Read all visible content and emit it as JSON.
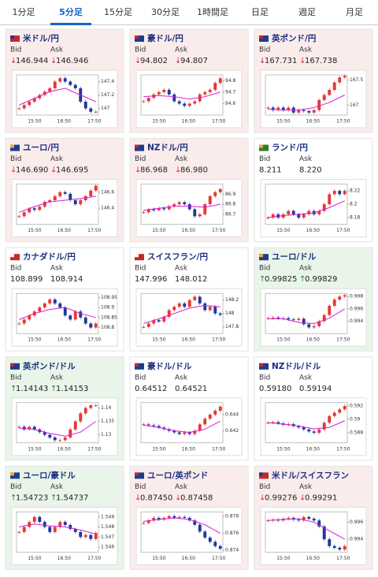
{
  "tabs": [
    "1分足",
    "5分足",
    "15分足",
    "30分足",
    "1時間足",
    "日足",
    "週足",
    "月足"
  ],
  "active_tab": 1,
  "labels": {
    "bid": "Bid",
    "ask": "Ask"
  },
  "xticks": [
    "15:50",
    "16:50",
    "17:50"
  ],
  "tiles": [
    {
      "pair": "米ドル/円",
      "trend": "↓",
      "bid": "146.944",
      "ask": "146.946",
      "chart": {
        "ylim": [
          146.9,
          147.5
        ],
        "yticks": [
          147,
          147.2,
          147.4
        ],
        "close": [
          147.0,
          147.05,
          147.1,
          147.15,
          147.2,
          147.25,
          147.3,
          147.4,
          147.45,
          147.4,
          147.35,
          147.3,
          147.1,
          147.0,
          146.95,
          146.95
        ],
        "ma": [
          147.05,
          147.15,
          147.25,
          147.3,
          147.2,
          147.1
        ]
      }
    },
    {
      "pair": "豪ドル/円",
      "trend": "↓",
      "bid": "94.802",
      "ask": "94.807",
      "chart": {
        "ylim": [
          94.5,
          94.85
        ],
        "yticks": [
          94.6,
          94.7,
          94.8
        ],
        "close": [
          94.62,
          94.65,
          94.68,
          94.7,
          94.72,
          94.68,
          94.62,
          94.6,
          94.58,
          94.6,
          94.62,
          94.68,
          94.7,
          94.72,
          94.78,
          94.82
        ],
        "ma": [
          94.66,
          94.67,
          94.66,
          94.64,
          94.66,
          94.7
        ]
      }
    },
    {
      "pair": "英ポンド/円",
      "trend": "↓",
      "bid": "167.731",
      "ask": "167.738",
      "chart": {
        "ylim": [
          166.8,
          167.6
        ],
        "yticks": [
          167,
          167.5
        ],
        "close": [
          166.95,
          166.9,
          166.95,
          166.9,
          166.95,
          166.85,
          166.9,
          166.88,
          166.85,
          166.9,
          167.1,
          167.2,
          167.3,
          167.45,
          167.55,
          167.58
        ],
        "ma": [
          166.92,
          166.9,
          166.9,
          166.95,
          167.05,
          167.2
        ]
      }
    },
    {
      "pair": "ユーロ/円",
      "trend": "↓",
      "bid": "146.690",
      "ask": "146.695",
      "chart": {
        "ylim": [
          146.2,
          146.7
        ],
        "yticks": [
          146.4,
          146.6
        ],
        "close": [
          146.3,
          146.35,
          146.4,
          146.38,
          146.42,
          146.48,
          146.5,
          146.55,
          146.6,
          146.58,
          146.5,
          146.45,
          146.5,
          146.55,
          146.62,
          146.68
        ],
        "ma": [
          146.35,
          146.42,
          146.48,
          146.5,
          146.52,
          146.55
        ]
      }
    },
    {
      "pair": "NZドル/円",
      "trend": "↓",
      "bid": "86.968",
      "ask": "86.980",
      "chart": {
        "ylim": [
          86.6,
          87.0
        ],
        "yticks": [
          86.7,
          86.8,
          86.9
        ],
        "close": [
          86.72,
          86.75,
          86.74,
          86.76,
          86.75,
          86.78,
          86.8,
          86.82,
          86.8,
          86.75,
          86.68,
          86.7,
          86.8,
          86.88,
          86.92,
          86.95
        ],
        "ma": [
          86.74,
          86.76,
          86.78,
          86.78,
          86.77,
          86.8
        ]
      }
    },
    {
      "pair": "ランド/円",
      "trend": null,
      "bid": "8.211",
      "ask": "8.220",
      "chart": {
        "ylim": [
          8.17,
          8.23
        ],
        "yticks": [
          8.18,
          8.2,
          8.22
        ],
        "close": [
          8.18,
          8.185,
          8.18,
          8.185,
          8.19,
          8.185,
          8.18,
          8.185,
          8.19,
          8.185,
          8.19,
          8.2,
          8.215,
          8.22,
          8.215,
          8.22
        ],
        "ma": [
          8.18,
          8.183,
          8.185,
          8.187,
          8.195,
          8.205
        ]
      }
    },
    {
      "pair": "カナダドル/円",
      "trend": null,
      "bid": "108.899",
      "ask": "108.914",
      "chart": {
        "ylim": [
          108.77,
          108.97
        ],
        "yticks": [
          108.8,
          108.85,
          108.9,
          108.95
        ],
        "close": [
          108.82,
          108.84,
          108.86,
          108.88,
          108.9,
          108.92,
          108.94,
          108.92,
          108.9,
          108.86,
          108.84,
          108.88,
          108.85,
          108.82,
          108.8,
          108.82
        ],
        "ma": [
          108.84,
          108.87,
          108.89,
          108.9,
          108.87,
          108.85
        ]
      }
    },
    {
      "pair": "スイスフラン/円",
      "trend": null,
      "bid": "147.996",
      "ask": "148.012",
      "chart": {
        "ylim": [
          147.7,
          148.3
        ],
        "yticks": [
          147.8,
          148,
          148.2
        ],
        "close": [
          147.8,
          147.85,
          147.9,
          147.88,
          147.95,
          148.05,
          148.1,
          148.15,
          148.1,
          148.2,
          148.25,
          148.15,
          148.05,
          148.1,
          148.0,
          147.98
        ],
        "ma": [
          147.85,
          147.92,
          148.0,
          148.08,
          148.12,
          148.1
        ]
      }
    },
    {
      "pair": "ユーロ/ドル",
      "trend": "↑",
      "bid": "0.99825",
      "ask": "0.99829",
      "chart": {
        "ylim": [
          0.992,
          0.9985
        ],
        "yticks": [
          0.994,
          0.996,
          0.998
        ],
        "close": [
          0.9945,
          0.9946,
          0.9944,
          0.9945,
          0.9943,
          0.9942,
          0.9944,
          0.9935,
          0.993,
          0.9932,
          0.994,
          0.995,
          0.9965,
          0.9975,
          0.998,
          0.9982
        ],
        "ma": [
          0.9944,
          0.9944,
          0.9938,
          0.9936,
          0.9945,
          0.996
        ]
      }
    },
    {
      "pair": "英ポンド/ドル",
      "trend": "↑",
      "bid": "1.14143",
      "ask": "1.14153",
      "chart": {
        "ylim": [
          1.127,
          1.142
        ],
        "yticks": [
          1.13,
          1.135,
          1.14
        ],
        "close": [
          1.133,
          1.132,
          1.133,
          1.132,
          1.131,
          1.13,
          1.129,
          1.128,
          1.128,
          1.129,
          1.132,
          1.135,
          1.138,
          1.14,
          1.141,
          1.141
        ],
        "ma": [
          1.1325,
          1.132,
          1.1305,
          1.1295,
          1.131,
          1.135
        ]
      }
    },
    {
      "pair": "豪ドル/ドル",
      "trend": null,
      "bid": "0.64512",
      "ask": "0.64521",
      "chart": {
        "ylim": [
          0.6405,
          0.6455
        ],
        "yticks": [
          0.642,
          0.644
        ],
        "close": [
          0.6428,
          0.6427,
          0.6426,
          0.6424,
          0.6422,
          0.642,
          0.6418,
          0.6416,
          0.6418,
          0.6416,
          0.642,
          0.6428,
          0.6435,
          0.644,
          0.6445,
          0.645
        ],
        "ma": [
          0.6427,
          0.6424,
          0.642,
          0.6418,
          0.6422,
          0.6432
        ]
      }
    },
    {
      "pair": "NZドル/ドル",
      "trend": null,
      "bid": "0.59180",
      "ask": "0.59194",
      "chart": {
        "ylim": [
          0.5865,
          0.5925
        ],
        "yticks": [
          0.588,
          0.59,
          0.592
        ],
        "close": [
          0.5895,
          0.5896,
          0.5894,
          0.5892,
          0.5893,
          0.589,
          0.5888,
          0.5885,
          0.5882,
          0.588,
          0.5885,
          0.5895,
          0.5905,
          0.591,
          0.5915,
          0.592
        ],
        "ma": [
          0.5895,
          0.5893,
          0.589,
          0.5886,
          0.5888,
          0.5898
        ]
      }
    },
    {
      "pair": "ユーロ/豪ドル",
      "trend": "↑",
      "bid": "1.54723",
      "ask": "1.54737",
      "chart": {
        "ylim": [
          1.5455,
          1.5495
        ],
        "yticks": [
          1.546,
          1.547,
          1.548,
          1.549
        ],
        "close": [
          1.5475,
          1.548,
          1.5485,
          1.549,
          1.5485,
          1.548,
          1.5475,
          1.548,
          1.5485,
          1.5482,
          1.5478,
          1.5475,
          1.547,
          1.5472,
          1.5468,
          1.5474
        ],
        "ma": [
          1.548,
          1.5483,
          1.5481,
          1.548,
          1.5477,
          1.5473
        ]
      }
    },
    {
      "pair": "ユーロ/英ポンド",
      "trend": "↓",
      "bid": "0.87450",
      "ask": "0.87458",
      "chart": {
        "ylim": [
          0.8738,
          0.8785
        ],
        "yticks": [
          0.874,
          0.876,
          0.878
        ],
        "close": [
          0.8772,
          0.8775,
          0.8778,
          0.8776,
          0.8778,
          0.878,
          0.8778,
          0.8779,
          0.8778,
          0.8775,
          0.877,
          0.8762,
          0.8755,
          0.875,
          0.8745,
          0.8742
        ],
        "ma": [
          0.8774,
          0.8776,
          0.8778,
          0.8776,
          0.877,
          0.876
        ]
      }
    },
    {
      "pair": "米ドル/スイスフラン",
      "trend": "↓",
      "bid": "0.99276",
      "ask": "0.99291",
      "chart": {
        "ylim": [
          0.9925,
          0.9972
        ],
        "yticks": [
          0.994,
          0.996
        ],
        "close": [
          0.9962,
          0.9963,
          0.9962,
          0.9964,
          0.9965,
          0.9963,
          0.9962,
          0.9966,
          0.9964,
          0.9962,
          0.9955,
          0.994,
          0.9932,
          0.993,
          0.9928,
          0.9932
        ],
        "ma": [
          0.9962,
          0.9963,
          0.9964,
          0.996,
          0.995,
          0.994
        ]
      }
    }
  ]
}
